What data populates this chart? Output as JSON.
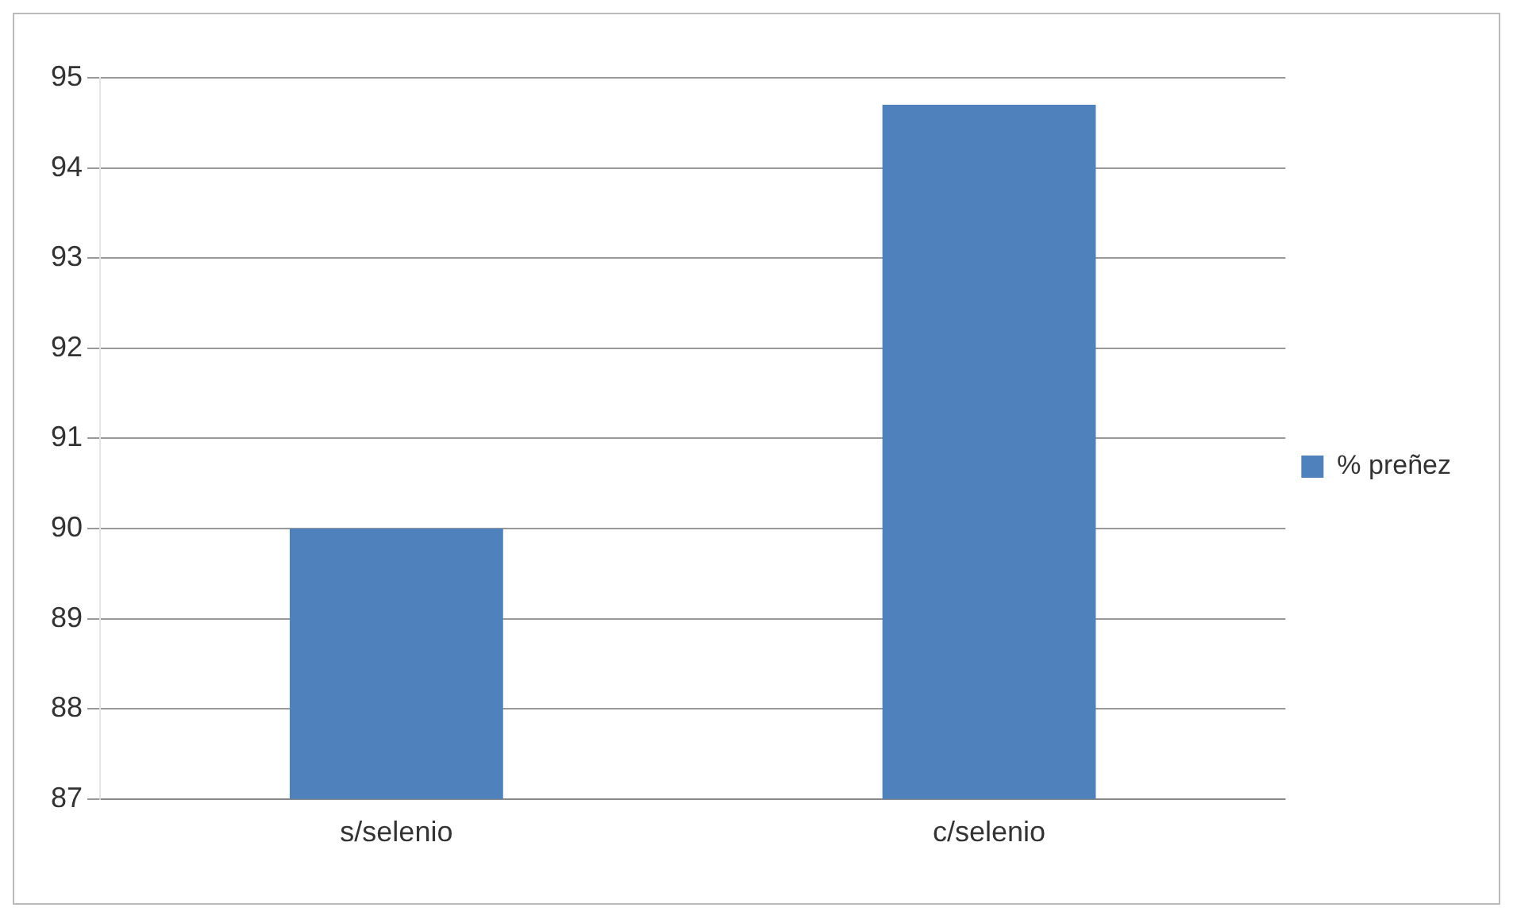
{
  "chart_data": {
    "type": "bar",
    "categories": [
      "s/selenio",
      "c/selenio"
    ],
    "series": [
      {
        "name": "% preñez",
        "color": "#4f81bd",
        "values": [
          90,
          94.7
        ]
      }
    ],
    "ylim": [
      87,
      95
    ],
    "yticks": [
      87,
      88,
      89,
      90,
      91,
      92,
      93,
      94,
      95
    ],
    "grid": "y",
    "legend": "right"
  }
}
